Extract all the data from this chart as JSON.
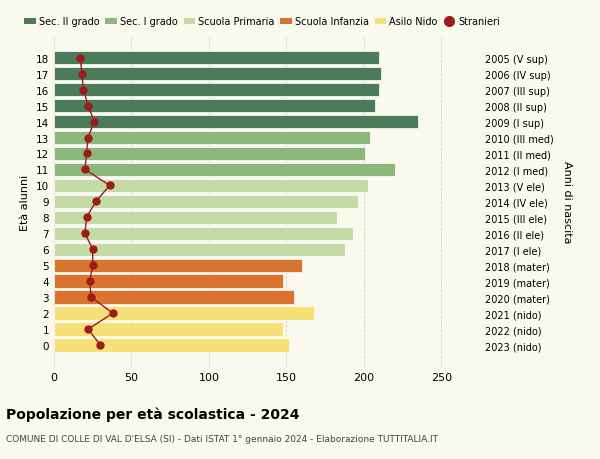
{
  "ages": [
    18,
    17,
    16,
    15,
    14,
    13,
    12,
    11,
    10,
    9,
    8,
    7,
    6,
    5,
    4,
    3,
    2,
    1,
    0
  ],
  "right_labels": [
    "2005 (V sup)",
    "2006 (IV sup)",
    "2007 (III sup)",
    "2008 (II sup)",
    "2009 (I sup)",
    "2010 (III med)",
    "2011 (II med)",
    "2012 (I med)",
    "2013 (V ele)",
    "2014 (IV ele)",
    "2015 (III ele)",
    "2016 (II ele)",
    "2017 (I ele)",
    "2018 (mater)",
    "2019 (mater)",
    "2020 (mater)",
    "2021 (nido)",
    "2022 (nido)",
    "2023 (nido)"
  ],
  "bar_values": [
    210,
    211,
    210,
    207,
    235,
    204,
    201,
    220,
    203,
    196,
    183,
    193,
    188,
    160,
    148,
    155,
    168,
    148,
    152
  ],
  "stranieri_values": [
    17,
    18,
    19,
    22,
    26,
    22,
    21,
    20,
    36,
    27,
    21,
    20,
    25,
    25,
    23,
    24,
    38,
    22,
    30
  ],
  "bar_colors": [
    "#4a7c59",
    "#4a7c59",
    "#4a7c59",
    "#4a7c59",
    "#4a7c59",
    "#8cb87a",
    "#8cb87a",
    "#8cb87a",
    "#c5dba4",
    "#c5dba4",
    "#c5dba4",
    "#c5dba4",
    "#c5dba4",
    "#d97430",
    "#d97430",
    "#d97430",
    "#f7e07a",
    "#f7e07a",
    "#f7e07a"
  ],
  "legend_labels": [
    "Sec. II grado",
    "Sec. I grado",
    "Scuola Primaria",
    "Scuola Infanzia",
    "Asilo Nido",
    "Stranieri"
  ],
  "legend_colors": [
    "#4a7c59",
    "#8cb87a",
    "#c5dba4",
    "#d97430",
    "#f7e07a",
    "#a02020"
  ],
  "stranieri_color": "#9b1c1c",
  "ylabel_left": "Età alunni",
  "ylabel_right": "Anni di nascita",
  "title": "Popolazione per età scolastica - 2024",
  "subtitle": "COMUNE DI COLLE DI VAL D'ELSA (SI) - Dati ISTAT 1° gennaio 2024 - Elaborazione TUTTITALIA.IT",
  "xlim": [
    0,
    275
  ],
  "background_color": "#f9f9ee",
  "grid_color": "#cccccc"
}
